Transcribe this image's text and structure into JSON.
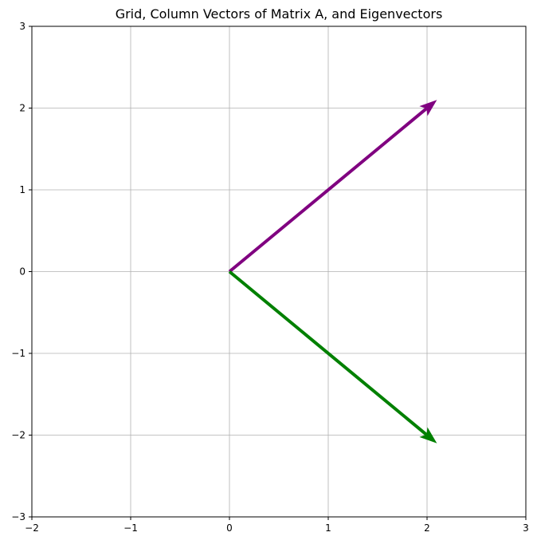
{
  "chart_data": {
    "type": "line",
    "title": "Grid, Column Vectors of Matrix A, and Eigenvectors",
    "xlabel": "",
    "ylabel": "",
    "xlim": [
      -2,
      3
    ],
    "ylim": [
      -3,
      3
    ],
    "grid": true,
    "x_ticks": [
      -2,
      -1,
      0,
      1,
      2,
      3
    ],
    "x_tick_labels": [
      "−2",
      "−1",
      "0",
      "1",
      "2",
      "3"
    ],
    "y_ticks": [
      -3,
      -2,
      -1,
      0,
      1,
      2,
      3
    ],
    "y_tick_labels": [
      "−3",
      "−2",
      "−1",
      "0",
      "1",
      "2",
      "3"
    ],
    "series": [
      {
        "color": "#800080",
        "x": [
          0,
          2.1
        ],
        "y": [
          0,
          2.1
        ]
      },
      {
        "color": "#008000",
        "x": [
          0,
          2.1
        ],
        "y": [
          0,
          -2.1
        ]
      }
    ]
  }
}
